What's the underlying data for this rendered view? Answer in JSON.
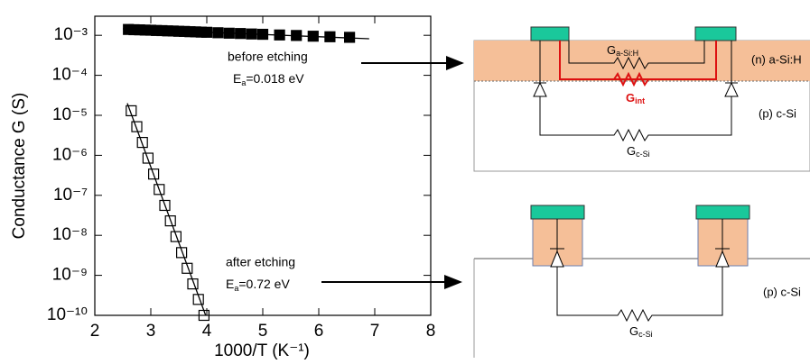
{
  "chart_data": {
    "type": "scatter",
    "ylog": true,
    "x_label": "1000/T (K⁻¹)",
    "y_label": "Conductance G (S)",
    "xlim": [
      2,
      8
    ],
    "ylim": [
      1e-10,
      0.003
    ],
    "xticks": [
      2,
      3,
      4,
      5,
      6,
      7,
      8
    ],
    "yticks": [
      {
        "value": 1e-10,
        "label": "10⁻¹⁰"
      },
      {
        "value": 1e-09,
        "label": "10⁻⁹"
      },
      {
        "value": 1e-08,
        "label": "10⁻⁸"
      },
      {
        "value": 1e-07,
        "label": "10⁻⁷"
      },
      {
        "value": 1e-06,
        "label": "10⁻⁶"
      },
      {
        "value": 1e-05,
        "label": "10⁻⁵"
      },
      {
        "value": 0.0001,
        "label": "10⁻⁴"
      },
      {
        "value": 0.001,
        "label": "10⁻³"
      }
    ],
    "series": [
      {
        "marker": "filled-square",
        "color": "#000000",
        "x": [
          2.6,
          2.7,
          2.8,
          2.9,
          3.0,
          3.1,
          3.2,
          3.3,
          3.4,
          3.5,
          3.6,
          3.7,
          3.8,
          3.9,
          4.0,
          4.2,
          4.4,
          4.6,
          4.8,
          5.0,
          5.3,
          5.6,
          5.9,
          6.2,
          6.55
        ],
        "values": [
          0.0014,
          0.00138,
          0.00137,
          0.00135,
          0.00134,
          0.00132,
          0.00131,
          0.00129,
          0.00128,
          0.00126,
          0.00125,
          0.00123,
          0.00122,
          0.0012,
          0.00119,
          0.00116,
          0.00113,
          0.00111,
          0.00108,
          0.00106,
          0.00102,
          0.00099,
          0.00095,
          0.00092,
          0.00089
        ]
      },
      {
        "marker": "open-square",
        "color": "#000000",
        "x": [
          2.65,
          2.75,
          2.85,
          2.95,
          3.05,
          3.15,
          3.25,
          3.35,
          3.45,
          3.55,
          3.65,
          3.75,
          3.85,
          3.95
        ],
        "values": [
          1.3e-05,
          5.2e-06,
          2.1e-06,
          8.5e-07,
          3.4e-07,
          1.4e-07,
          5.6e-08,
          2.3e-08,
          9.3e-09,
          3.7e-09,
          1.5e-09,
          6.1e-10,
          2.5e-10,
          1e-10
        ]
      }
    ],
    "fits": [
      {
        "x": [
          2.5,
          6.9
        ],
        "values": [
          0.00145,
          0.00082
        ]
      },
      {
        "x": [
          2.58,
          3.98
        ],
        "values": [
          2e-05,
          1e-10
        ]
      }
    ],
    "annotations": [
      {
        "text": "before etching"
      },
      {
        "symbol": "E",
        "sub": "a",
        "rest": "=0.018 eV"
      },
      {
        "text": "after etching"
      },
      {
        "symbol": "E",
        "sub": "a",
        "rest": "=0.72 eV"
      }
    ]
  },
  "diagrams": {
    "top": {
      "layer": "(n) a-Si:H",
      "substrate": "(p) c-Si",
      "g_layer": {
        "symbol": "G",
        "sub": "a-Si:H"
      },
      "g_int": {
        "symbol": "G",
        "sub": "int"
      },
      "g_sub": {
        "symbol": "G",
        "sub": "c-Si"
      }
    },
    "bottom": {
      "substrate": "(p) c-Si",
      "g_sub": {
        "symbol": "G",
        "sub": "c-Si"
      }
    }
  }
}
